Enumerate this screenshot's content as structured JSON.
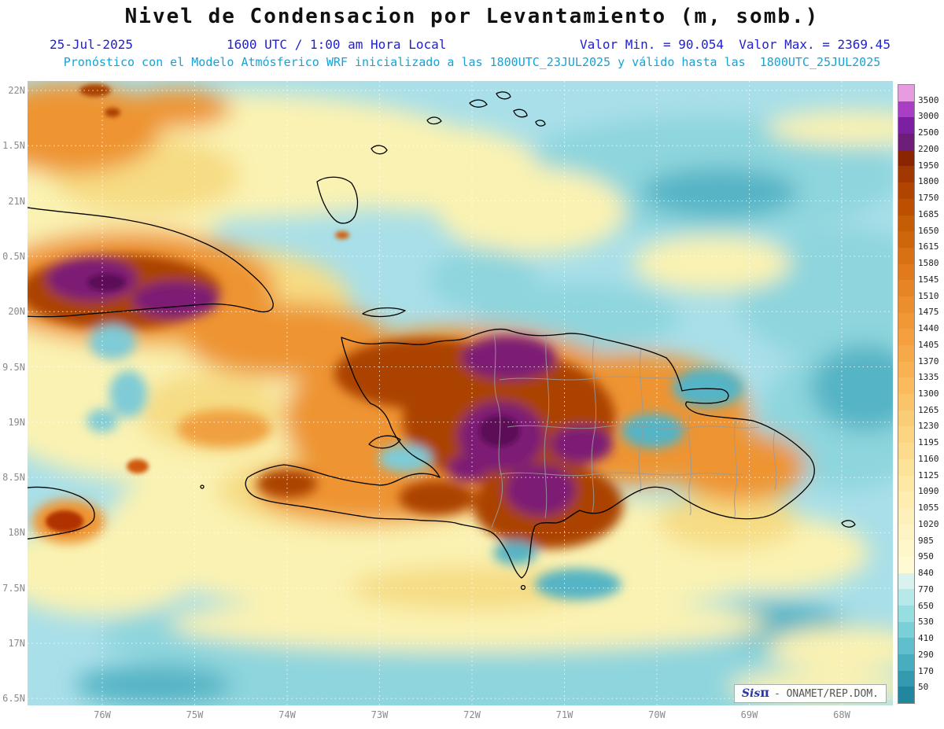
{
  "title": "Nivel de Condensacion por Levantamiento (m, somb.)",
  "header": {
    "date": "25-Jul-2025",
    "time_local": "1600 UTC / 1:00 am Hora Local",
    "min_max": "Valor Min. = 90.054  Valor Max. = 2369.45",
    "forecast": "Pronóstico con el Modelo Atmósferico WRF inicializado a las 1800UTC_23JUL2025 y válido hasta las  1800UTC_25JUL2025"
  },
  "map": {
    "lat_labels": [
      "22N",
      "1.5N",
      "21N",
      "0.5N",
      "20N",
      "9.5N",
      "19N",
      "8.5N",
      "18N",
      "7.5N",
      "17N",
      "6.5N"
    ],
    "lon_labels": [
      "76W",
      "75W",
      "74W",
      "73W",
      "72W",
      "71W",
      "70W",
      "69W",
      "68W"
    ],
    "watermark": {
      "brand": "Sis",
      "pi": "π",
      "org": "- ONAMET/REP.DOM."
    }
  },
  "colorbar": {
    "labels": [
      "3500",
      "3000",
      "2500",
      "2200",
      "1950",
      "1800",
      "1750",
      "1685",
      "1650",
      "1615",
      "1580",
      "1545",
      "1510",
      "1475",
      "1440",
      "1405",
      "1370",
      "1335",
      "1300",
      "1265",
      "1230",
      "1195",
      "1160",
      "1125",
      "1090",
      "1055",
      "1020",
      "985",
      "950",
      "840",
      "770",
      "650",
      "530",
      "410",
      "290",
      "170",
      "50"
    ],
    "colors": [
      "#E79BE0",
      "#A93FC4",
      "#7C1FA2",
      "#6E1E78",
      "#8B2500",
      "#A03800",
      "#B04400",
      "#BC5000",
      "#C65C04",
      "#D0660C",
      "#D97014",
      "#E07A1C",
      "#E78424",
      "#ED8E2C",
      "#F19735",
      "#F4A03E",
      "#F6A948",
      "#F8B253",
      "#FABB5E",
      "#FBC46A",
      "#FBCC76",
      "#FCD482",
      "#FCDB8E",
      "#FDE29A",
      "#FDE8A6",
      "#FEECB1",
      "#FEF0BB",
      "#FEF3C4",
      "#FFF6CC",
      "#FFF9D4",
      "#D8F2EE",
      "#B7E9EA",
      "#98DDE1",
      "#7BCFD7",
      "#60BFCC",
      "#48ADBF",
      "#339AB0",
      "#23869F"
    ]
  },
  "chart_data": {
    "type": "heatmap",
    "title": "Nivel de Condensacion por Levantamiento (m, somb.)",
    "units": "m",
    "value_min": 90.054,
    "value_max": 2369.45,
    "x_ticks": [
      "76W",
      "75W",
      "74W",
      "73W",
      "72W",
      "71W",
      "70W",
      "69W",
      "68W"
    ],
    "y_ticks": [
      "22N",
      "1.5N",
      "21N",
      "0.5N",
      "20N",
      "9.5N",
      "19N",
      "8.5N",
      "18N",
      "7.5N",
      "17N",
      "6.5N"
    ],
    "scale_levels": [
      3500,
      3000,
      2500,
      2200,
      1950,
      1800,
      1750,
      1685,
      1650,
      1615,
      1580,
      1545,
      1510,
      1475,
      1440,
      1405,
      1370,
      1335,
      1300,
      1265,
      1230,
      1195,
      1160,
      1125,
      1090,
      1055,
      1020,
      985,
      950,
      840,
      770,
      650,
      530,
      410,
      290,
      170,
      50
    ]
  }
}
